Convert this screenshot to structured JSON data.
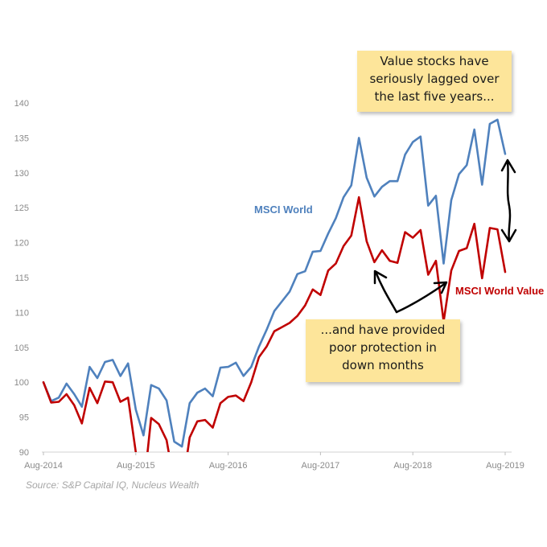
{
  "chart_data": {
    "type": "line",
    "title": "",
    "xlabel": "",
    "ylabel": "",
    "ylim": [
      90,
      140
    ],
    "yticks": [
      90,
      95,
      100,
      105,
      110,
      115,
      120,
      125,
      130,
      135,
      140
    ],
    "xtick_labels": [
      "Aug-2014",
      "Aug-2015",
      "Aug-2016",
      "Aug-2017",
      "Aug-2018",
      "Aug-2019"
    ],
    "grid": false,
    "x": [
      "Aug-2014",
      "Sep-2014",
      "Oct-2014",
      "Nov-2014",
      "Dec-2014",
      "Jan-2015",
      "Feb-2015",
      "Mar-2015",
      "Apr-2015",
      "May-2015",
      "Jun-2015",
      "Jul-2015",
      "Aug-2015",
      "Sep-2015",
      "Oct-2015",
      "Nov-2015",
      "Dec-2015",
      "Jan-2016",
      "Feb-2016",
      "Mar-2016",
      "Apr-2016",
      "May-2016",
      "Jun-2016",
      "Jul-2016",
      "Aug-2016",
      "Sep-2016",
      "Oct-2016",
      "Nov-2016",
      "Dec-2016",
      "Jan-2017",
      "Feb-2017",
      "Mar-2017",
      "Apr-2017",
      "May-2017",
      "Jun-2017",
      "Jul-2017",
      "Aug-2017",
      "Sep-2017",
      "Oct-2017",
      "Nov-2017",
      "Dec-2017",
      "Jan-2018",
      "Feb-2018",
      "Mar-2018",
      "Apr-2018",
      "May-2018",
      "Jun-2018",
      "Jul-2018",
      "Aug-2018",
      "Sep-2018",
      "Oct-2018",
      "Nov-2018",
      "Dec-2018",
      "Jan-2019",
      "Feb-2019",
      "Mar-2019",
      "Apr-2019",
      "May-2019",
      "Jun-2019",
      "Jul-2019",
      "Aug-2019"
    ],
    "series": [
      {
        "name": "MSCI World",
        "color": "#4f81bd",
        "values": [
          100,
          97.3,
          97.8,
          99.8,
          98.3,
          96.5,
          102.2,
          100.6,
          102.9,
          103.2,
          100.9,
          102.7,
          96.1,
          92.4,
          99.6,
          99.1,
          97.4,
          91.5,
          90.8,
          97,
          98.5,
          99.1,
          98,
          102.1,
          102.2,
          102.8,
          100.9,
          102.2,
          105.1,
          107.5,
          110.2,
          111.6,
          113,
          115.5,
          115.9,
          118.7,
          118.8,
          121.3,
          123.5,
          126.5,
          128.2,
          135,
          129.3,
          126.6,
          128,
          128.8,
          128.8,
          132.6,
          134.4,
          135.2,
          125.3,
          126.7,
          117,
          126.1,
          129.8,
          131.1,
          136.2,
          128.3,
          137,
          137.6,
          132.7
        ]
      },
      {
        "name": "MSCI World Value",
        "color": "#c00000",
        "values": [
          100,
          97.1,
          97.2,
          98.3,
          96.7,
          94.1,
          99.2,
          97,
          100.1,
          100,
          97.2,
          97.8,
          90,
          84.5,
          94.9,
          94,
          91.7,
          85.5,
          84.5,
          92.1,
          94.4,
          94.6,
          93.5,
          97,
          97.9,
          98.1,
          97.3,
          100,
          103.6,
          105.1,
          107.3,
          107.9,
          108.5,
          109.5,
          111,
          113.3,
          112.5,
          116,
          117,
          119.5,
          121,
          126.5,
          120.2,
          117.2,
          118.9,
          117.4,
          117.1,
          121.5,
          120.7,
          121.8,
          115.4,
          117.4,
          108.7,
          116,
          118.8,
          119.2,
          122.7,
          114.9,
          122.1,
          121.9,
          115.8
        ]
      }
    ],
    "series_labels": [
      {
        "text": "MSCI World",
        "color": "#4f81bd"
      },
      {
        "text": "MSCI World Value",
        "color": "#c00000"
      }
    ]
  },
  "annotations": {
    "top_note_lines": [
      "Value stocks have",
      "seriously lagged over",
      "the last five years..."
    ],
    "bottom_note_lines": [
      "...and have provided",
      "poor protection in",
      "down months"
    ],
    "note_color": "#fde59a"
  },
  "source": "Source: S&P Capital IQ, Nucleus Wealth"
}
